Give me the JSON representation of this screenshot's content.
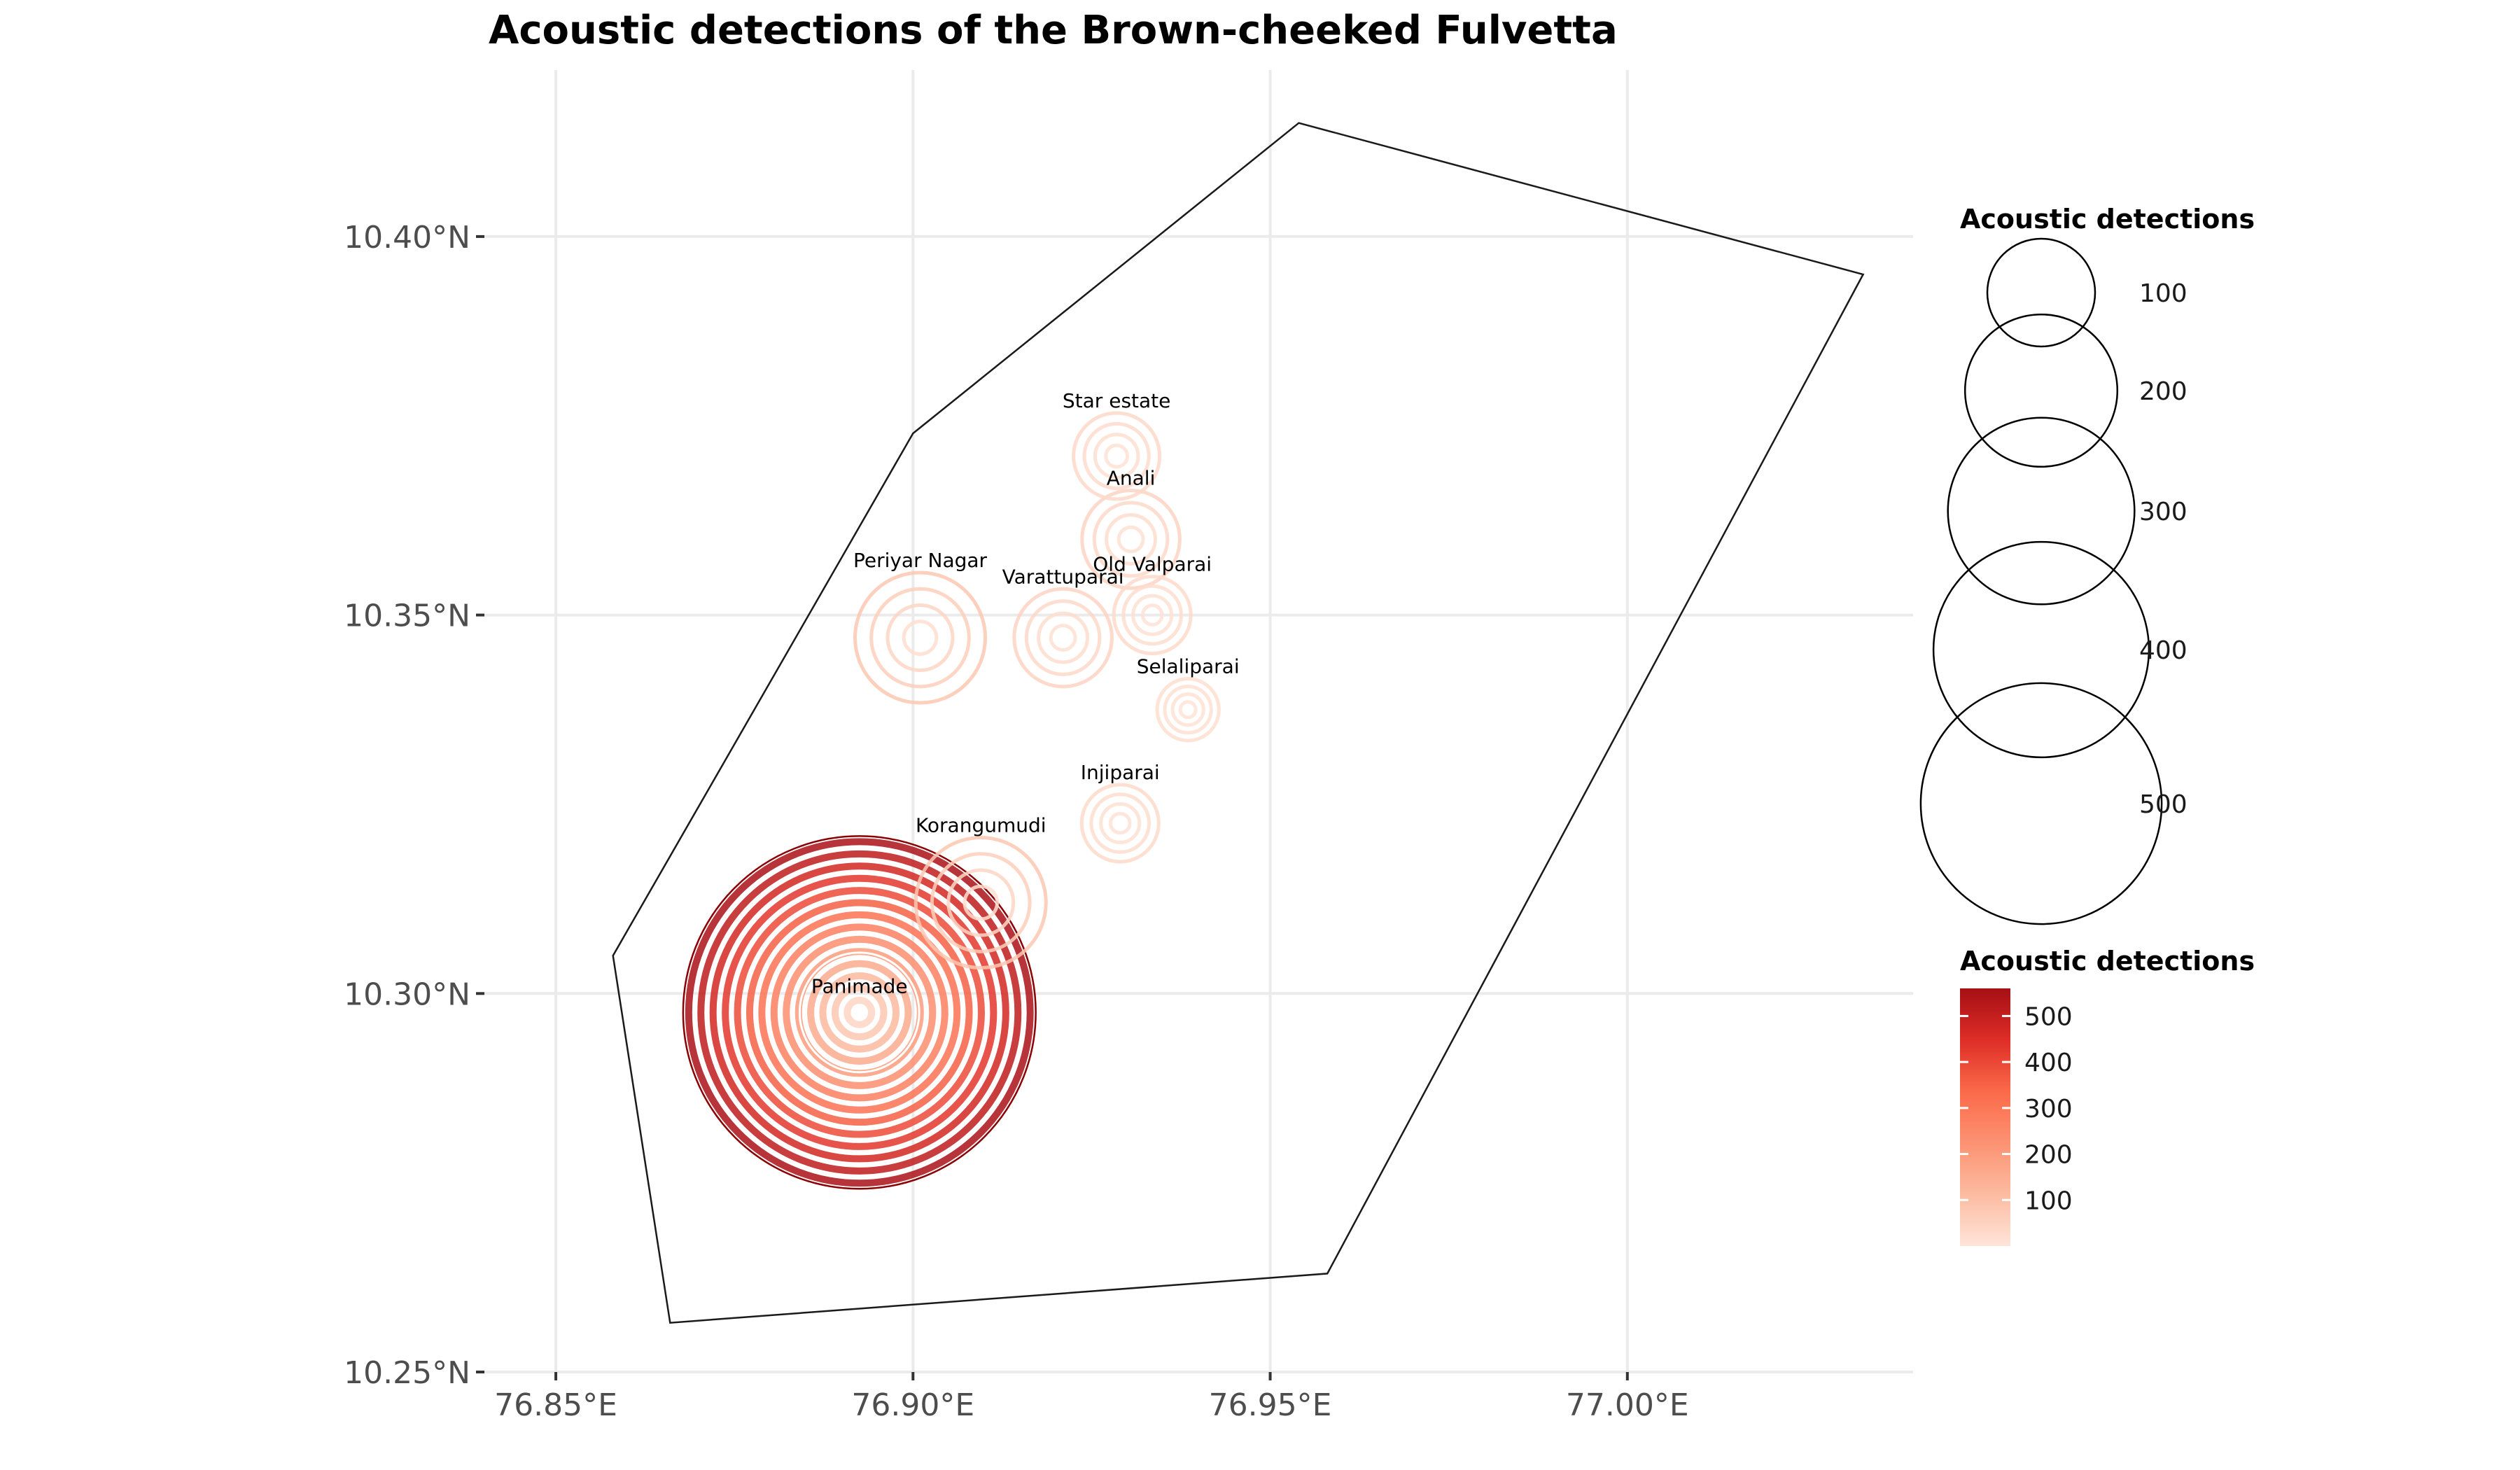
{
  "chart_data": {
    "type": "scatter",
    "title": "Acoustic detections of the Brown-cheeked Fulvetta",
    "xlabel": "",
    "ylabel": "",
    "xlim": [
      76.84,
      77.04
    ],
    "ylim": [
      10.25,
      10.422
    ],
    "x_ticks": [
      76.85,
      76.9,
      76.95,
      77.0
    ],
    "x_tick_labels": [
      "76.85°E",
      "76.90°E",
      "76.95°E",
      "77.00°E"
    ],
    "y_ticks": [
      10.25,
      10.3,
      10.35,
      10.4
    ],
    "y_tick_labels": [
      "10.25°N",
      "10.30°N",
      "10.35°N",
      "10.40°N"
    ],
    "grid": true,
    "boundary_polygon": [
      [
        76.954,
        10.415
      ],
      [
        77.033,
        10.395
      ],
      [
        76.958,
        10.263
      ],
      [
        76.866,
        10.2565
      ],
      [
        76.858,
        10.305
      ],
      [
        76.9,
        10.374
      ]
    ],
    "sites": [
      {
        "name": "Star estate",
        "lon": 76.9285,
        "lat": 10.371,
        "detections": 35
      },
      {
        "name": "Anali",
        "lon": 76.9305,
        "lat": 10.36,
        "detections": 45
      },
      {
        "name": "Old Valparai",
        "lon": 76.9335,
        "lat": 10.35,
        "detections": 28
      },
      {
        "name": "Periyar Nagar",
        "lon": 76.901,
        "lat": 10.347,
        "detections": 80
      },
      {
        "name": "Varattuparai",
        "lon": 76.921,
        "lat": 10.347,
        "detections": 45
      },
      {
        "name": "Selaliparai",
        "lon": 76.9385,
        "lat": 10.3375,
        "detections": 18
      },
      {
        "name": "Injiparai",
        "lon": 76.929,
        "lat": 10.3225,
        "detections": 28
      },
      {
        "name": "Korangumudi",
        "lon": 76.9095,
        "lat": 10.312,
        "detections": 80
      },
      {
        "name": "Panimade",
        "lon": 76.8925,
        "lat": 10.2975,
        "detections": 550
      }
    ],
    "size_legend": {
      "title": "Acoustic detections",
      "values": [
        100,
        200,
        300,
        400,
        500
      ],
      "labels": [
        "100",
        "200",
        "300",
        "400",
        "500"
      ]
    },
    "color_legend": {
      "title": "Acoustic detections",
      "range": [
        0,
        560
      ],
      "ticks": [
        100,
        200,
        300,
        400,
        500
      ],
      "labels": [
        "100",
        "200",
        "300",
        "400",
        "500"
      ],
      "colors": [
        "#fee5d9",
        "#fcbba1",
        "#fc9272",
        "#fb6a4a",
        "#de2d26",
        "#a50f15"
      ]
    }
  }
}
